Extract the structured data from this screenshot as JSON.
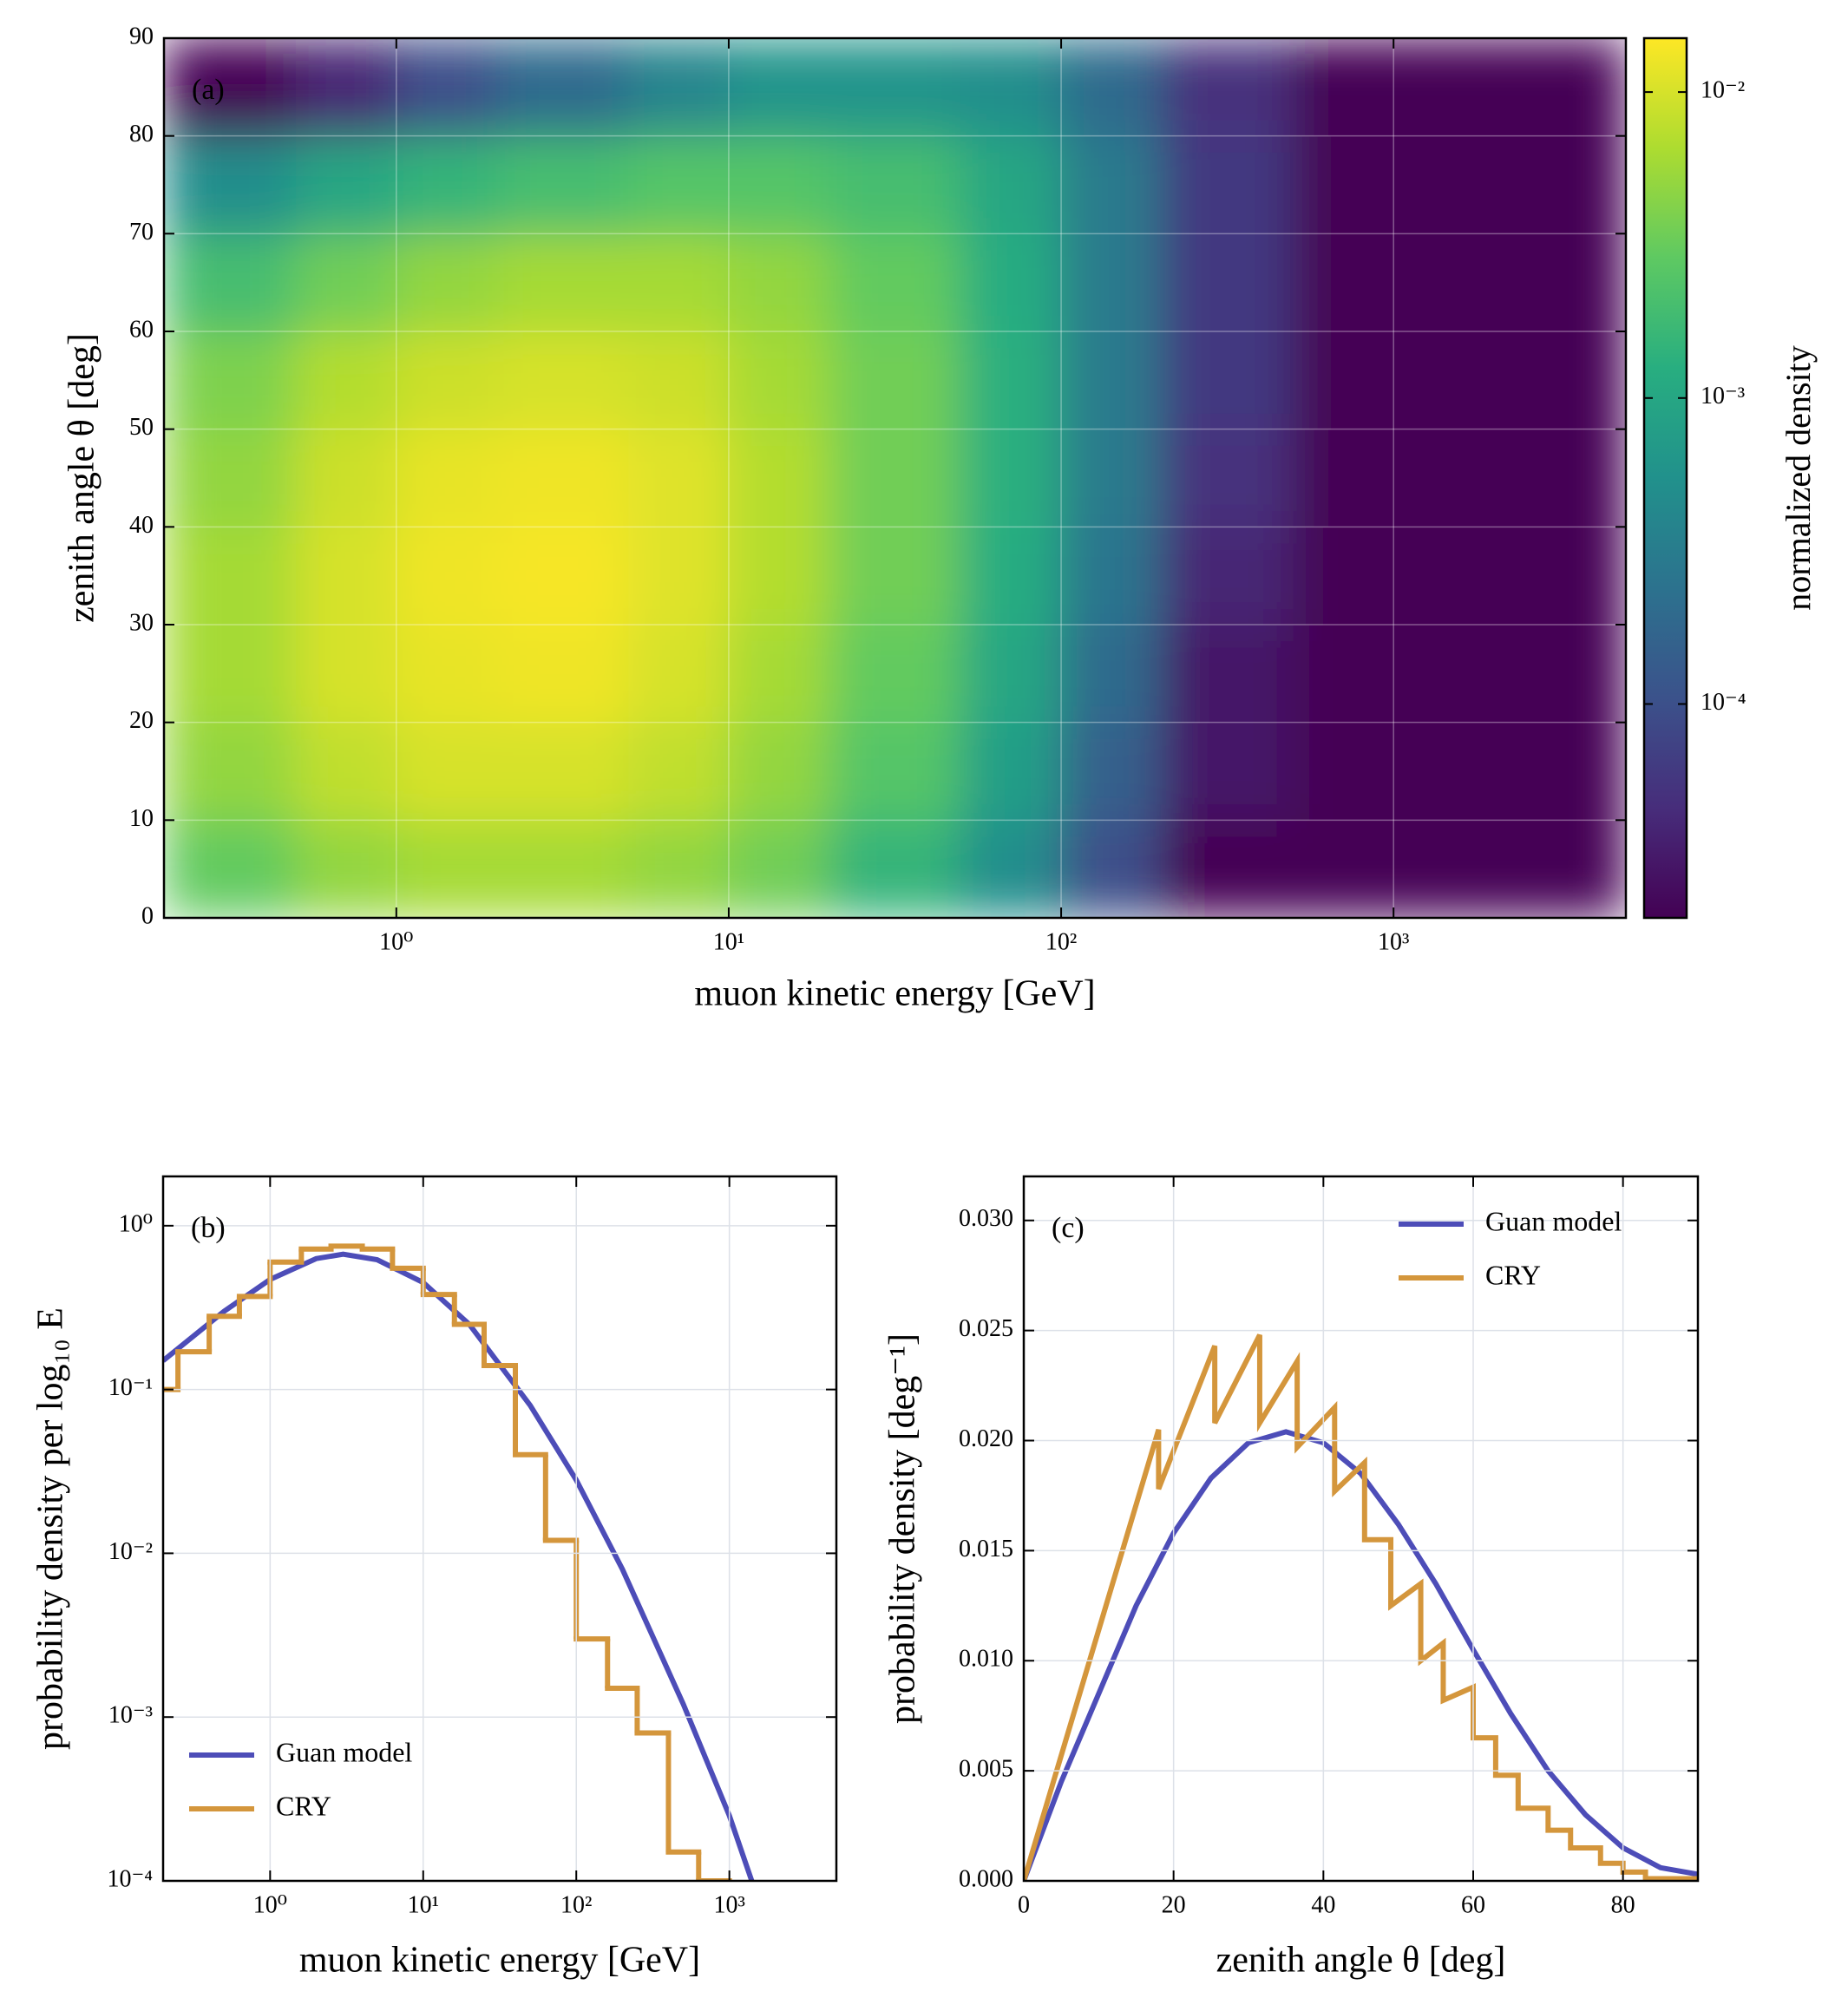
{
  "chart_data": [
    {
      "type": "heatmap",
      "annotation": "(a)",
      "xlabel": "muon kinetic energy [GeV]",
      "ylabel": "zenith angle θ [deg]",
      "log_x": true,
      "grid": true,
      "colormap": "viridis",
      "xlim": [
        0.2,
        5000
      ],
      "xticks": [
        {
          "value": 1,
          "label": "10⁰"
        },
        {
          "value": 10,
          "label": "10¹"
        },
        {
          "value": 100,
          "label": "10²"
        },
        {
          "value": 1000,
          "label": "10³"
        }
      ],
      "ylim": [
        0,
        90
      ],
      "yticks": [
        0,
        10,
        20,
        30,
        40,
        50,
        60,
        70,
        80,
        90
      ],
      "xbins": [
        0.2,
        0.5,
        1,
        2,
        5,
        10,
        20,
        50,
        100,
        200,
        500,
        1000,
        5000
      ],
      "ybins": [
        0,
        10,
        20,
        30,
        40,
        50,
        60,
        70,
        80,
        90
      ],
      "values": [
        [
          0.003,
          0.005,
          0.006,
          0.006,
          0.005,
          0.0035,
          0.0015,
          0.0005,
          0.0001,
          2e-05,
          2e-05,
          2e-05
        ],
        [
          0.005,
          0.008,
          0.01,
          0.01,
          0.008,
          0.005,
          0.0025,
          0.0008,
          0.00015,
          3e-05,
          2e-05,
          2e-05
        ],
        [
          0.006,
          0.01,
          0.012,
          0.013,
          0.01,
          0.006,
          0.003,
          0.001,
          0.0002,
          3e-05,
          2e-05,
          2e-05
        ],
        [
          0.006,
          0.01,
          0.013,
          0.014,
          0.011,
          0.007,
          0.0035,
          0.0012,
          0.00025,
          4e-05,
          2e-05,
          2e-05
        ],
        [
          0.005,
          0.009,
          0.012,
          0.013,
          0.011,
          0.007,
          0.0035,
          0.0013,
          0.0003,
          5e-05,
          2e-05,
          2e-05
        ],
        [
          0.004,
          0.007,
          0.009,
          0.01,
          0.009,
          0.006,
          0.0035,
          0.0013,
          0.0003,
          6e-05,
          2e-05,
          2e-05
        ],
        [
          0.002,
          0.0035,
          0.005,
          0.006,
          0.006,
          0.005,
          0.003,
          0.0012,
          0.0003,
          6e-05,
          2e-05,
          2e-05
        ],
        [
          0.0005,
          0.001,
          0.0015,
          0.002,
          0.0025,
          0.0025,
          0.002,
          0.001,
          0.0003,
          6e-05,
          2e-05,
          2e-05
        ],
        [
          2e-05,
          4e-05,
          0.0001,
          0.0002,
          0.0004,
          0.0006,
          0.0006,
          0.0005,
          0.0002,
          5e-05,
          2e-05,
          2e-05
        ]
      ],
      "colorbar": {
        "label": "normalized density",
        "log": true,
        "lim": [
          2e-05,
          0.015
        ],
        "ticks": [
          {
            "value": 0.0001,
            "label": "10⁻⁴"
          },
          {
            "value": 0.001,
            "label": "10⁻³"
          },
          {
            "value": 0.01,
            "label": "10⁻²"
          }
        ]
      }
    },
    {
      "type": "line",
      "annotation": "(b)",
      "xlabel": "muon kinetic energy [GeV]",
      "ylabel": "probability density per log₁₀ E",
      "log_x": true,
      "log_y": true,
      "grid": true,
      "legend": "lower left",
      "xlim": [
        0.2,
        5000
      ],
      "xticks": [
        {
          "value": 1,
          "label": "10⁰"
        },
        {
          "value": 10,
          "label": "10¹"
        },
        {
          "value": 100,
          "label": "10²"
        },
        {
          "value": 1000,
          "label": "10³"
        }
      ],
      "ylim": [
        0.0001,
        2
      ],
      "yticks": [
        {
          "value": 0.0001,
          "label": "10⁻⁴"
        },
        {
          "value": 0.001,
          "label": "10⁻³"
        },
        {
          "value": 0.01,
          "label": "10⁻²"
        },
        {
          "value": 0.1,
          "label": "10⁻¹"
        },
        {
          "value": 1,
          "label": "10⁰"
        }
      ],
      "series": [
        {
          "name": "Guan model",
          "color": "#4d4db8",
          "x": [
            0.2,
            0.5,
            1,
            2,
            3,
            5,
            10,
            20,
            50,
            100,
            200,
            500,
            1000,
            1400
          ],
          "values": [
            0.15,
            0.3,
            0.47,
            0.63,
            0.67,
            0.62,
            0.45,
            0.25,
            0.08,
            0.028,
            0.008,
            0.0012,
            0.00025,
            0.0001
          ]
        },
        {
          "name": "CRY",
          "color": "#d4963c",
          "bins": [
            0.2,
            0.25,
            0.4,
            0.63,
            1,
            1.6,
            2.5,
            4,
            6.3,
            10,
            16,
            25,
            40,
            63,
            100,
            160,
            250,
            400,
            630,
            1000
          ],
          "values": [
            0.1,
            0.17,
            0.28,
            0.37,
            0.6,
            0.72,
            0.75,
            0.72,
            0.55,
            0.38,
            0.25,
            0.14,
            0.04,
            0.012,
            0.003,
            0.0015,
            0.0008,
            0.00015,
            0.0001
          ]
        }
      ]
    },
    {
      "type": "line",
      "annotation": "(c)",
      "xlabel": "zenith angle θ [deg]",
      "ylabel": "probability density [deg⁻¹]",
      "grid": true,
      "legend": "upper right",
      "xlim": [
        0,
        90
      ],
      "xticks": [
        0,
        20,
        40,
        60,
        80
      ],
      "ylim": [
        0,
        0.032
      ],
      "yticks": [
        {
          "value": 0,
          "label": "0.000"
        },
        {
          "value": 0.005,
          "label": "0.005"
        },
        {
          "value": 0.01,
          "label": "0.010"
        },
        {
          "value": 0.015,
          "label": "0.015"
        },
        {
          "value": 0.02,
          "label": "0.020"
        },
        {
          "value": 0.025,
          "label": "0.025"
        },
        {
          "value": 0.03,
          "label": "0.030"
        }
      ],
      "series": [
        {
          "name": "Guan model",
          "color": "#4d4db8",
          "x": [
            0,
            5,
            10,
            15,
            20,
            25,
            30,
            35,
            40,
            45,
            50,
            55,
            60,
            65,
            70,
            75,
            80,
            85,
            90
          ],
          "values": [
            0,
            0.0045,
            0.0085,
            0.0125,
            0.0158,
            0.0183,
            0.0199,
            0.0204,
            0.0199,
            0.0185,
            0.0162,
            0.0135,
            0.0105,
            0.0076,
            0.005,
            0.003,
            0.0015,
            0.0006,
            0.0003
          ]
        },
        {
          "name": "CRY",
          "color": "#d4963c",
          "x": [
            0,
            18,
            18,
            25.5,
            25.5,
            31.5,
            31.5,
            36.5,
            36.5,
            41.5,
            41.5,
            45.5,
            45.5,
            49,
            49,
            53,
            53,
            56,
            56,
            60,
            60,
            63,
            63,
            66,
            66,
            70,
            70,
            73,
            73,
            77,
            77,
            80,
            80,
            83,
            83,
            90
          ],
          "values": [
            0,
            0.0205,
            0.0178,
            0.0243,
            0.0208,
            0.0248,
            0.0208,
            0.0236,
            0.0197,
            0.0215,
            0.0177,
            0.019,
            0.0155,
            0.0155,
            0.0125,
            0.0135,
            0.01,
            0.0108,
            0.0082,
            0.0088,
            0.0065,
            0.0065,
            0.0048,
            0.0048,
            0.0033,
            0.0033,
            0.0023,
            0.0023,
            0.0015,
            0.0015,
            0.0008,
            0.0008,
            0.0004,
            0.0004,
            0.0001,
            0.0001
          ]
        }
      ]
    }
  ]
}
